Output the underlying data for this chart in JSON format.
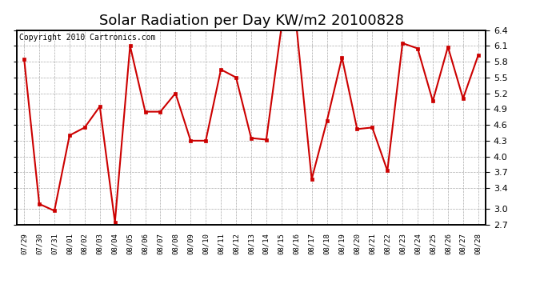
{
  "title": "Solar Radiation per Day KW/m2 20100828",
  "copyright_text": "Copyright 2010 Cartronics.com",
  "dates": [
    "07/29",
    "07/30",
    "07/31",
    "08/01",
    "08/02",
    "08/03",
    "08/04",
    "08/05",
    "08/06",
    "08/07",
    "08/08",
    "08/09",
    "08/10",
    "08/11",
    "08/12",
    "08/13",
    "08/14",
    "08/15",
    "08/16",
    "08/17",
    "08/18",
    "08/19",
    "08/20",
    "08/21",
    "08/22",
    "08/23",
    "08/24",
    "08/25",
    "08/26",
    "08/27",
    "08/28"
  ],
  "values": [
    5.85,
    3.1,
    2.97,
    4.4,
    4.55,
    4.95,
    2.75,
    6.1,
    4.85,
    4.85,
    5.2,
    4.3,
    4.3,
    5.65,
    5.5,
    4.35,
    4.32,
    6.45,
    6.45,
    3.57,
    4.67,
    5.88,
    4.52,
    4.55,
    3.73,
    6.15,
    6.05,
    5.05,
    6.08,
    5.1,
    5.92
  ],
  "line_color": "#cc0000",
  "marker_color": "#cc0000",
  "bg_color": "#ffffff",
  "plot_bg_color": "#ffffff",
  "grid_color": "#aaaaaa",
  "ylim_min": 2.7,
  "ylim_max": 6.4,
  "yticks": [
    2.7,
    3.0,
    3.4,
    3.7,
    4.0,
    4.3,
    4.6,
    4.9,
    5.2,
    5.5,
    5.8,
    6.1,
    6.4
  ],
  "title_fontsize": 13,
  "copyright_fontsize": 7
}
